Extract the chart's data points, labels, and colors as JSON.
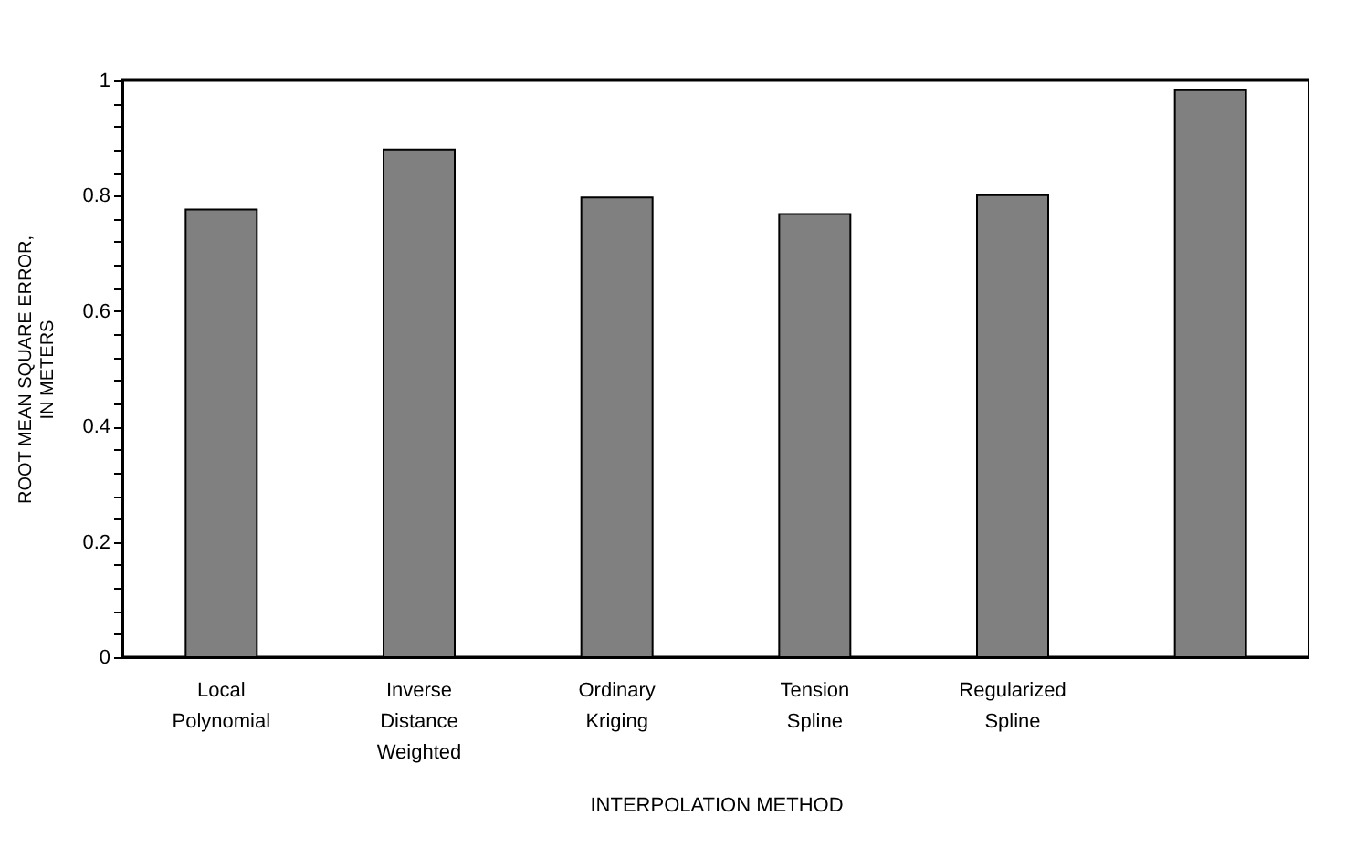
{
  "chart_data": {
    "type": "bar",
    "categories": [
      "Local\nPolynomial",
      "Inverse\nDistance\nWeighted",
      "Ordinary\nKriging",
      "Tension\nSpline",
      "Regularized\nSpline",
      null
    ],
    "values": [
      0.776,
      0.88,
      0.797,
      0.768,
      0.801,
      0.983
    ],
    "color": "#808080",
    "xlabel": "INTERPOLATION METHOD",
    "ylabel": "ROOT MEAN SQUARE ERROR,\nIN METERS",
    "ylim": [
      0,
      1
    ],
    "yticks": [
      0,
      {
        "value": 0.04,
        "label": null
      },
      {
        "value": 0.08,
        "label": null
      },
      {
        "value": 0.12,
        "label": null
      },
      {
        "value": 0.16,
        "label": null
      },
      0.2,
      {
        "value": 0.24,
        "label": null
      },
      {
        "value": 0.28,
        "label": null
      },
      {
        "value": 0.32,
        "label": null
      },
      {
        "value": 0.36,
        "label": null
      },
      0.4,
      {
        "value": 0.44,
        "label": null
      },
      {
        "value": 0.48,
        "label": null
      },
      {
        "value": 0.52,
        "label": null
      },
      {
        "value": 0.56,
        "label": null
      },
      0.6,
      {
        "value": 0.64,
        "label": null
      },
      {
        "value": 0.68,
        "label": null
      },
      {
        "value": 0.72,
        "label": null
      },
      {
        "value": 0.76,
        "label": null
      },
      0.8,
      {
        "value": 0.84,
        "label": null
      },
      {
        "value": 0.88,
        "label": null
      },
      {
        "value": 0.92,
        "label": null
      },
      {
        "value": 0.96,
        "label": null
      },
      1
    ],
    "grid": false
  }
}
